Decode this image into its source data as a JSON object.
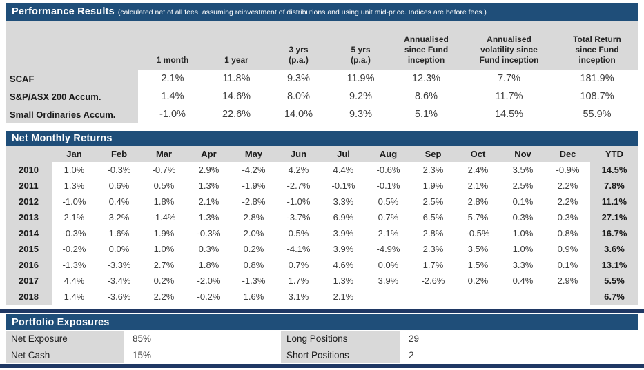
{
  "colors": {
    "header_bar": "#1f4e79",
    "divider_line": "#1f3864",
    "cell_gray": "#d9d9d9",
    "data_text": "#3d3d3d"
  },
  "performance": {
    "title": "Performance Results",
    "subtitle": "(calculated net of all fees, assuming reinvestment of distributions and using unit mid-price. Indices are before fees.)",
    "columns": [
      "1 month",
      "1 year",
      "3 yrs\n(p.a.)",
      "5 yrs\n(p.a.)",
      "Annualised\nsince Fund\ninception",
      "Annualised\nvolatility since\nFund inception",
      "Total Return\nsince Fund\ninception"
    ],
    "rows": [
      {
        "label": "SCAF",
        "values": [
          "2.1%",
          "11.8%",
          "9.3%",
          "11.9%",
          "12.3%",
          "7.7%",
          "181.9%"
        ]
      },
      {
        "label": "S&P/ASX 200 Accum.",
        "values": [
          "1.4%",
          "14.6%",
          "8.0%",
          "9.2%",
          "8.6%",
          "11.7%",
          "108.7%"
        ]
      },
      {
        "label": "Small Ordinaries Accum.",
        "values": [
          "-1.0%",
          "22.6%",
          "14.0%",
          "9.3%",
          "5.1%",
          "14.5%",
          "55.9%"
        ]
      }
    ]
  },
  "monthly": {
    "title": "Net Monthly Returns",
    "columns": [
      "Jan",
      "Feb",
      "Mar",
      "Apr",
      "May",
      "Jun",
      "Jul",
      "Aug",
      "Sep",
      "Oct",
      "Nov",
      "Dec",
      "YTD"
    ],
    "rows": [
      {
        "year": "2010",
        "values": [
          "1.0%",
          "-0.3%",
          "-0.7%",
          "2.9%",
          "-4.2%",
          "4.2%",
          "4.4%",
          "-0.6%",
          "2.3%",
          "2.4%",
          "3.5%",
          "-0.9%"
        ],
        "ytd": "14.5%"
      },
      {
        "year": "2011",
        "values": [
          "1.3%",
          "0.6%",
          "0.5%",
          "1.3%",
          "-1.9%",
          "-2.7%",
          "-0.1%",
          "-0.1%",
          "1.9%",
          "2.1%",
          "2.5%",
          "2.2%"
        ],
        "ytd": "7.8%"
      },
      {
        "year": "2012",
        "values": [
          "-1.0%",
          "0.4%",
          "1.8%",
          "2.1%",
          "-2.8%",
          "-1.0%",
          "3.3%",
          "0.5%",
          "2.5%",
          "2.8%",
          "0.1%",
          "2.2%"
        ],
        "ytd": "11.1%"
      },
      {
        "year": "2013",
        "values": [
          "2.1%",
          "3.2%",
          "-1.4%",
          "1.3%",
          "2.8%",
          "-3.7%",
          "6.9%",
          "0.7%",
          "6.5%",
          "5.7%",
          "0.3%",
          "0.3%"
        ],
        "ytd": "27.1%"
      },
      {
        "year": "2014",
        "values": [
          "-0.3%",
          "1.6%",
          "1.9%",
          "-0.3%",
          "2.0%",
          "0.5%",
          "3.9%",
          "2.1%",
          "2.8%",
          "-0.5%",
          "1.0%",
          "0.8%"
        ],
        "ytd": "16.7%"
      },
      {
        "year": "2015",
        "values": [
          "-0.2%",
          "0.0%",
          "1.0%",
          "0.3%",
          "0.2%",
          "-4.1%",
          "3.9%",
          "-4.9%",
          "2.3%",
          "3.5%",
          "1.0%",
          "0.9%"
        ],
        "ytd": "3.6%"
      },
      {
        "year": "2016",
        "values": [
          "-1.3%",
          "-3.3%",
          "2.7%",
          "1.8%",
          "0.8%",
          "0.7%",
          "4.6%",
          "0.0%",
          "1.7%",
          "1.5%",
          "3.3%",
          "0.1%"
        ],
        "ytd": "13.1%"
      },
      {
        "year": "2017",
        "values": [
          "4.4%",
          "-3.4%",
          "0.2%",
          "-2.0%",
          "-1.3%",
          "1.7%",
          "1.3%",
          "3.9%",
          "-2.6%",
          "0.2%",
          "0.4%",
          "2.9%"
        ],
        "ytd": "5.5%"
      },
      {
        "year": "2018",
        "values": [
          "1.4%",
          "-3.6%",
          "2.2%",
          "-0.2%",
          "1.6%",
          "3.1%",
          "2.1%",
          "",
          "",
          "",
          "",
          ""
        ],
        "ytd": "6.7%"
      }
    ]
  },
  "exposures": {
    "title": "Portfolio Exposures",
    "left": [
      {
        "label": "Net Exposure",
        "value": "85%"
      },
      {
        "label": "Net Cash",
        "value": "15%"
      }
    ],
    "right": [
      {
        "label": "Long Positions",
        "value": "29"
      },
      {
        "label": "Short Positions",
        "value": "2"
      }
    ]
  }
}
